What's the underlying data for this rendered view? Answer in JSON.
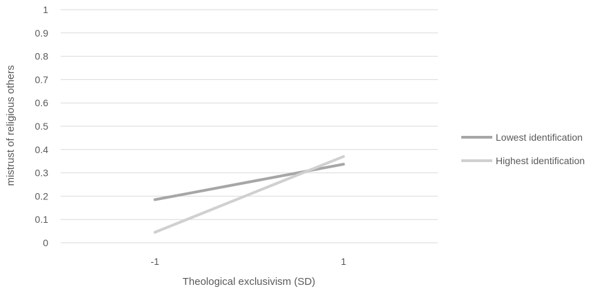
{
  "chart_data": {
    "type": "line",
    "categories": [
      "-1",
      "1"
    ],
    "series": [
      {
        "name": "Lowest identification",
        "values": [
          0.185,
          0.337
        ],
        "color": "#a6a6a6"
      },
      {
        "name": "Highest identification",
        "values": [
          0.045,
          0.37
        ],
        "color": "#d0d0d0"
      }
    ],
    "xlabel": "Theological exclusivism (SD)",
    "ylabel": "mistrust of religious others",
    "ylim": [
      0,
      1
    ],
    "yticks": [
      "0",
      "0.1",
      "0.2",
      "0.3",
      "0.4",
      "0.5",
      "0.6",
      "0.7",
      "0.8",
      "0.9",
      "1"
    ],
    "grid": true,
    "legend_position": "right",
    "gridline_color": "#d9d9d9"
  }
}
